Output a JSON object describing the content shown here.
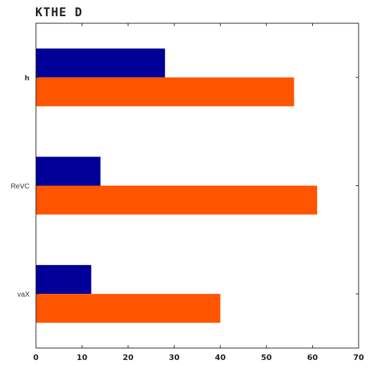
{
  "chart_data": {
    "type": "bar",
    "orientation": "horizontal",
    "title": "KTHE D",
    "categories": [
      "h",
      "ReVC",
      "vaX"
    ],
    "series": [
      {
        "values": [
          28,
          14,
          12
        ],
        "color": "#000099"
      },
      {
        "values": [
          56,
          61,
          40
        ],
        "color": "#ff5500"
      }
    ],
    "xlim": [
      0,
      70
    ],
    "x_ticks": [
      0,
      10,
      20,
      30,
      40,
      50,
      60,
      70
    ],
    "grid": false,
    "legend": "none"
  }
}
